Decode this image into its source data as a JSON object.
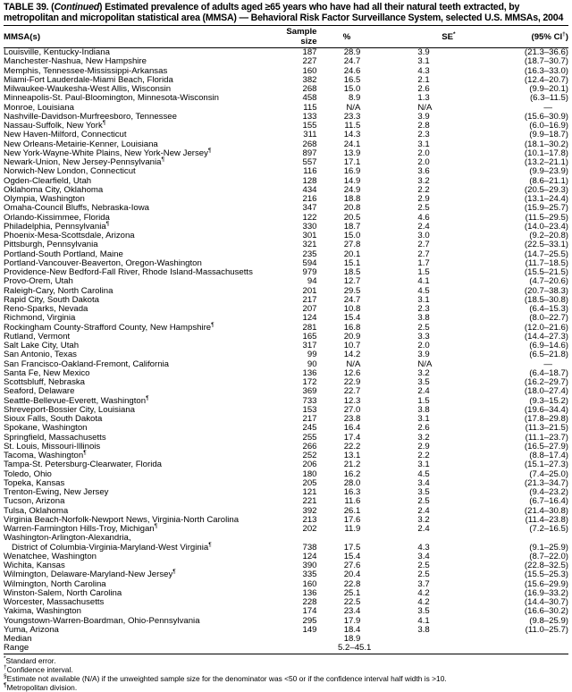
{
  "title": {
    "prefix": "TABLE 39. (",
    "italic": "Continued",
    "rest": ") Estimated prevalence of adults aged ≥65 years who have had all their natural teeth extracted, by metropolitan and micropolitan statistical area (MMSA) — Behavioral Risk Factor Surveillance System, selected U.S. MMSAs, 2004"
  },
  "headers": {
    "mmsa": "MMSA(s)",
    "n": "Sample size",
    "pct": "%",
    "se": "SE",
    "se_mark": "*",
    "ci": "(95% CI",
    "ci_mark": "†",
    "ci_close": ")"
  },
  "rows": [
    [
      "Louisville, Kentucky-Indiana",
      "",
      "187",
      "28.9",
      "3.9",
      "(21.3–36.6)"
    ],
    [
      "Manchester-Nashua, New Hampshire",
      "",
      "227",
      "24.7",
      "3.1",
      "(18.7–30.7)"
    ],
    [
      "Memphis, Tennessee-Mississippi-Arkansas",
      "",
      "160",
      "24.6",
      "4.3",
      "(16.3–33.0)"
    ],
    [
      "Miami-Fort Lauderdale-Miami Beach, Florida",
      "",
      "382",
      "16.5",
      "2.1",
      "(12.4–20.7)"
    ],
    [
      "Milwaukee-Waukesha-West Allis, Wisconsin",
      "",
      "268",
      "15.0",
      "2.6",
      "(9.9–20.1)"
    ],
    [
      "Minneapolis-St. Paul-Bloomington, Minnesota-Wisconsin",
      "",
      "458",
      "8.9",
      "1.3",
      "(6.3–11.5)"
    ],
    [
      "Monroe, Louisiana",
      "",
      "115",
      "N/A",
      "N/A",
      "—"
    ],
    [
      "Nashville-Davidson-Murfreesboro, Tennessee",
      "",
      "133",
      "23.3",
      "3.9",
      "(15.6–30.9)"
    ],
    [
      "Nassau-Suffolk, New York",
      "¶",
      "155",
      "11.5",
      "2.8",
      "(6.0–16.9)"
    ],
    [
      "New Haven-Milford, Connecticut",
      "",
      "311",
      "14.3",
      "2.3",
      "(9.9–18.7)"
    ],
    [
      "New Orleans-Metairie-Kenner, Louisiana",
      "",
      "268",
      "24.1",
      "3.1",
      "(18.1–30.2)"
    ],
    [
      "New York-Wayne-White Plains, New York-New Jersey",
      "¶",
      "897",
      "13.9",
      "2.0",
      "(10.1–17.8)"
    ],
    [
      "Newark-Union, New Jersey-Pennsylvania",
      "¶",
      "557",
      "17.1",
      "2.0",
      "(13.2–21.1)"
    ],
    [
      "Norwich-New London, Connecticut",
      "",
      "116",
      "16.9",
      "3.6",
      "(9.9–23.9)"
    ],
    [
      "Ogden-Clearfield, Utah",
      "",
      "128",
      "14.9",
      "3.2",
      "(8.6–21.1)"
    ],
    [
      "Oklahoma City, Oklahoma",
      "",
      "434",
      "24.9",
      "2.2",
      "(20.5–29.3)"
    ],
    [
      "Olympia, Washington",
      "",
      "216",
      "18.8",
      "2.9",
      "(13.1–24.4)"
    ],
    [
      "Omaha-Council Bluffs, Nebraska-Iowa",
      "",
      "347",
      "20.8",
      "2.5",
      "(15.9–25.7)"
    ],
    [
      "Orlando-Kissimmee, Florida",
      "",
      "122",
      "20.5",
      "4.6",
      "(11.5–29.5)"
    ],
    [
      "Philadelphia, Pennsylvania",
      "¶",
      "330",
      "18.7",
      "2.4",
      "(14.0–23.4)"
    ],
    [
      "Phoenix-Mesa-Scottsdale, Arizona",
      "",
      "301",
      "15.0",
      "3.0",
      "(9.2–20.8)"
    ],
    [
      "Pittsburgh, Pennsylvania",
      "",
      "321",
      "27.8",
      "2.7",
      "(22.5–33.1)"
    ],
    [
      "Portland-South Portland, Maine",
      "",
      "235",
      "20.1",
      "2.7",
      "(14.7–25.5)"
    ],
    [
      "Portland-Vancouver-Beaverton, Oregon-Washington",
      "",
      "594",
      "15.1",
      "1.7",
      "(11.7–18.5)"
    ],
    [
      "Providence-New Bedford-Fall River, Rhode Island-Massachusetts",
      "",
      "979",
      "18.5",
      "1.5",
      "(15.5–21.5)"
    ],
    [
      "Provo-Orem, Utah",
      "",
      "94",
      "12.7",
      "4.1",
      "(4.7–20.6)"
    ],
    [
      "Raleigh-Cary, North Carolina",
      "",
      "201",
      "29.5",
      "4.5",
      "(20.7–38.3)"
    ],
    [
      "Rapid City, South Dakota",
      "",
      "217",
      "24.7",
      "3.1",
      "(18.5–30.8)"
    ],
    [
      "Reno-Sparks, Nevada",
      "",
      "207",
      "10.8",
      "2.3",
      "(6.4–15.3)"
    ],
    [
      "Richmond, Virginia",
      "",
      "124",
      "15.4",
      "3.8",
      "(8.0–22.7)"
    ],
    [
      "Rockingham County-Strafford County, New Hampshire",
      "¶",
      "281",
      "16.8",
      "2.5",
      "(12.0–21.6)"
    ],
    [
      "Rutland, Vermont",
      "",
      "165",
      "20.9",
      "3.3",
      "(14.4–27.3)"
    ],
    [
      "Salt Lake City, Utah",
      "",
      "317",
      "10.7",
      "2.0",
      "(6.9–14.6)"
    ],
    [
      "San Antonio, Texas",
      "",
      "99",
      "14.2",
      "3.9",
      "(6.5–21.8)"
    ],
    [
      "San Francisco-Oakland-Fremont, California",
      "",
      "90",
      "N/A",
      "N/A",
      "—"
    ],
    [
      "Santa Fe, New Mexico",
      "",
      "136",
      "12.6",
      "3.2",
      "(6.4–18.7)"
    ],
    [
      "Scottsbluff, Nebraska",
      "",
      "172",
      "22.9",
      "3.5",
      "(16.2–29.7)"
    ],
    [
      "Seaford, Delaware",
      "",
      "369",
      "22.7",
      "2.4",
      "(18.0–27.4)"
    ],
    [
      "Seattle-Bellevue-Everett, Washington",
      "¶",
      "733",
      "12.3",
      "1.5",
      "(9.3–15.2)"
    ],
    [
      "Shreveport-Bossier City, Louisiana",
      "",
      "153",
      "27.0",
      "3.8",
      "(19.6–34.4)"
    ],
    [
      "Sioux Falls, South Dakota",
      "",
      "217",
      "23.8",
      "3.1",
      "(17.8–29.8)"
    ],
    [
      "Spokane, Washington",
      "",
      "245",
      "16.4",
      "2.6",
      "(11.3–21.5)"
    ],
    [
      "Springfield, Massachusetts",
      "",
      "255",
      "17.4",
      "3.2",
      "(11.1–23.7)"
    ],
    [
      "St. Louis, Missouri-Illinois",
      "",
      "266",
      "22.2",
      "2.9",
      "(16.5–27.9)"
    ],
    [
      "Tacoma, Washington",
      "¶",
      "252",
      "13.1",
      "2.2",
      "(8.8–17.4)"
    ],
    [
      "Tampa-St. Petersburg-Clearwater, Florida",
      "",
      "206",
      "21.2",
      "3.1",
      "(15.1–27.3)"
    ],
    [
      "Toledo, Ohio",
      "",
      "180",
      "16.2",
      "4.5",
      "(7.4–25.0)"
    ],
    [
      "Topeka, Kansas",
      "",
      "205",
      "28.0",
      "3.4",
      "(21.3–34.7)"
    ],
    [
      "Trenton-Ewing, New Jersey",
      "",
      "121",
      "16.3",
      "3.5",
      "(9.4–23.2)"
    ],
    [
      "Tucson, Arizona",
      "",
      "221",
      "11.6",
      "2.5",
      "(6.7–16.4)"
    ],
    [
      "Tulsa, Oklahoma",
      "",
      "392",
      "26.1",
      "2.4",
      "(21.4–30.8)"
    ],
    [
      "Virginia Beach-Norfolk-Newport News, Virginia-North Carolina",
      "",
      "213",
      "17.6",
      "3.2",
      "(11.4–23.8)"
    ],
    [
      "Warren-Farmington Hills-Troy, Michigan",
      "¶",
      "202",
      "11.9",
      "2.4",
      "(7.2–16.5)"
    ],
    [
      "Washington-Arlington-Alexandria,",
      "",
      "",
      "",
      "",
      ""
    ],
    [
      "District of Columbia-Virginia-Maryland-West Virginia",
      "¶",
      "738",
      "17.5",
      "4.3",
      "(9.1–25.9)"
    ],
    [
      "Wenatchee, Washington",
      "",
      "124",
      "15.4",
      "3.4",
      "(8.7–22.0)"
    ],
    [
      "Wichita, Kansas",
      "",
      "390",
      "27.6",
      "2.5",
      "(22.8–32.5)"
    ],
    [
      "Wilmington, Delaware-Maryland-New Jersey",
      "¶",
      "335",
      "20.4",
      "2.5",
      "(15.5–25.3)"
    ],
    [
      "Wilmington, North Carolina",
      "",
      "160",
      "22.8",
      "3.7",
      "(15.6–29.9)"
    ],
    [
      "Winston-Salem, North Carolina",
      "",
      "136",
      "25.1",
      "4.2",
      "(16.9–33.2)"
    ],
    [
      "Worcester, Massachusetts",
      "",
      "228",
      "22.5",
      "4.2",
      "(14.4–30.7)"
    ],
    [
      "Yakima, Washington",
      "",
      "174",
      "23.4",
      "3.5",
      "(16.6–30.2)"
    ],
    [
      "Youngstown-Warren-Boardman, Ohio-Pennsylvania",
      "",
      "295",
      "17.9",
      "4.1",
      "(9.8–25.9)"
    ],
    [
      "Yuma, Arizona",
      "",
      "149",
      "18.4",
      "3.8",
      "(11.0–25.7)"
    ]
  ],
  "summary": [
    {
      "label": "Median",
      "value": "18.9"
    },
    {
      "label": "Range",
      "value": "5.2–45.1"
    }
  ],
  "footnotes": [
    {
      "mark": "*",
      "text": "Standard error."
    },
    {
      "mark": "†",
      "text": "Confidence interval."
    },
    {
      "mark": "§",
      "text": "Estimate not available (N/A) if the unweighted sample size for the denominator was <50 or if the confidence interval half width is >10."
    },
    {
      "mark": "¶",
      "text": "Metropolitan division."
    }
  ]
}
